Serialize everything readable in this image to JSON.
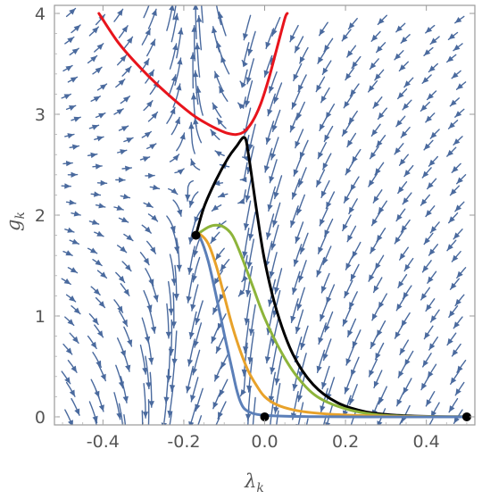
{
  "chart_data": {
    "type": "line",
    "title": "",
    "xlabel": "λ",
    "xlabel_sub": "k",
    "ylabel": "g",
    "ylabel_sub": "k",
    "xlim": [
      -0.52,
      0.52
    ],
    "ylim": [
      -0.08,
      4.08
    ],
    "x_ticks": [
      -0.4,
      -0.2,
      0.0,
      0.2,
      0.4
    ],
    "x_tick_labels": [
      "-0.4",
      "-0.2",
      "0.0",
      "0.2",
      "0.4"
    ],
    "y_ticks": [
      0,
      1,
      2,
      3,
      4
    ],
    "y_tick_labels": [
      "0",
      "1",
      "2",
      "3",
      "4"
    ],
    "grid": false,
    "background_stream_plot": true,
    "stream_color": "#4a6a9e",
    "series": [
      {
        "color": "#e8141c",
        "x": [
          -0.41,
          -0.36,
          -0.3,
          -0.24,
          -0.18,
          -0.14,
          -0.11,
          -0.09,
          -0.07,
          -0.05,
          -0.03,
          -0.01,
          0.01,
          0.03,
          0.05,
          0.056
        ],
        "y": [
          4.0,
          3.7,
          3.43,
          3.2,
          3.0,
          2.9,
          2.84,
          2.81,
          2.8,
          2.83,
          2.93,
          3.1,
          3.35,
          3.65,
          3.95,
          4.0
        ]
      },
      {
        "color": "#000000",
        "x": [
          -0.17,
          -0.15,
          -0.12,
          -0.09,
          -0.07,
          -0.05,
          -0.04,
          -0.02,
          0.0,
          0.03,
          0.07,
          0.12,
          0.18,
          0.25,
          0.33,
          0.42,
          0.5
        ],
        "y": [
          1.8,
          2.08,
          2.35,
          2.57,
          2.68,
          2.77,
          2.6,
          2.05,
          1.55,
          1.05,
          0.62,
          0.32,
          0.14,
          0.05,
          0.015,
          0.003,
          0.0
        ]
      },
      {
        "color": "#8db43a",
        "x": [
          -0.17,
          -0.14,
          -0.12,
          -0.1,
          -0.08,
          -0.06,
          -0.03,
          0.0,
          0.04,
          0.08,
          0.13,
          0.2,
          0.28,
          0.38,
          0.5
        ],
        "y": [
          1.8,
          1.88,
          1.9,
          1.88,
          1.8,
          1.62,
          1.3,
          0.98,
          0.65,
          0.4,
          0.2,
          0.08,
          0.02,
          0.004,
          0.0
        ]
      },
      {
        "color": "#e8a22a",
        "x": [
          -0.17,
          -0.16,
          -0.14,
          -0.12,
          -0.1,
          -0.08,
          -0.06,
          -0.04,
          -0.02,
          0.0,
          0.03,
          0.07,
          0.12,
          0.2,
          0.3,
          0.4,
          0.5
        ],
        "y": [
          1.8,
          1.81,
          1.72,
          1.5,
          1.2,
          0.9,
          0.65,
          0.45,
          0.31,
          0.2,
          0.12,
          0.07,
          0.04,
          0.018,
          0.006,
          0.002,
          0.0
        ]
      },
      {
        "color": "#5b7fb8",
        "x": [
          -0.17,
          -0.16,
          -0.14,
          -0.12,
          -0.1,
          -0.08,
          -0.07,
          -0.06,
          -0.05,
          -0.03,
          0.0,
          0.05,
          0.12,
          0.2,
          0.3,
          0.4,
          0.5
        ],
        "y": [
          1.8,
          1.78,
          1.55,
          1.2,
          0.82,
          0.46,
          0.28,
          0.15,
          0.08,
          0.035,
          0.015,
          0.006,
          0.002,
          0.0,
          0.0,
          0.0,
          0.0
        ]
      }
    ],
    "points": [
      {
        "x": -0.17,
        "y": 1.8
      },
      {
        "x": 0.0,
        "y": 0.0
      },
      {
        "x": 0.5,
        "y": 0.0
      }
    ]
  }
}
